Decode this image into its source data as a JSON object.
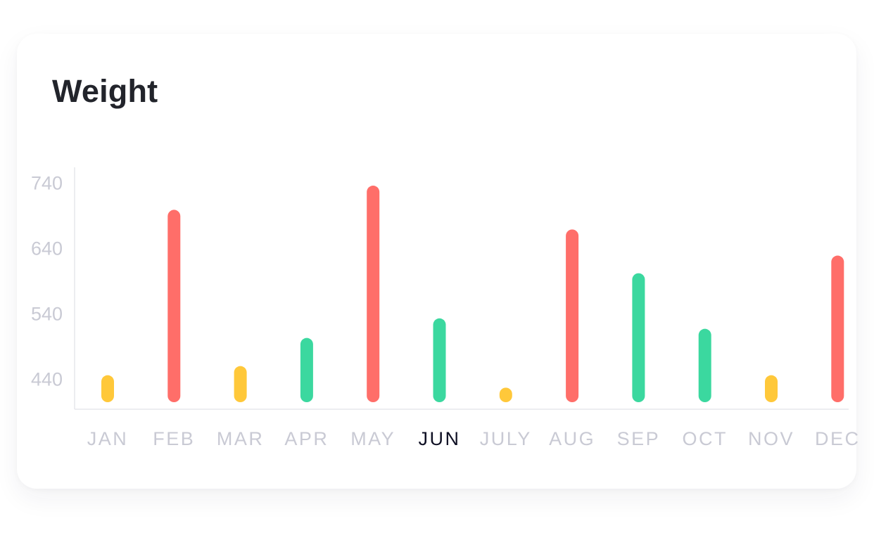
{
  "card": {
    "title": "Weight"
  },
  "chart_data": {
    "type": "bar",
    "title": "Weight",
    "xlabel": "",
    "ylabel": "",
    "categories": [
      "JAN",
      "FEB",
      "MAR",
      "APR",
      "MAY",
      "JUN",
      "JULY",
      "AUG",
      "SEP",
      "OCT",
      "NOV",
      "DEC"
    ],
    "values": [
      445,
      698,
      459,
      502,
      735,
      532,
      426,
      668,
      601,
      516,
      445,
      628
    ],
    "highlighted": "JUN",
    "bar_colors": [
      "#ffc83a",
      "#ff6e69",
      "#ffc83a",
      "#3bd89f",
      "#ff6e69",
      "#3bd89f",
      "#ffc83a",
      "#ff6e69",
      "#3bd89f",
      "#3bd89f",
      "#ffc83a",
      "#ff6e69"
    ],
    "yticks": [
      440,
      540,
      640,
      740
    ],
    "ylim": [
      393,
      763
    ],
    "grid": false,
    "colors": {
      "tick_label": "#c9cad4",
      "highlight_label": "#0f1024",
      "axis": "#e6e7ec"
    }
  }
}
